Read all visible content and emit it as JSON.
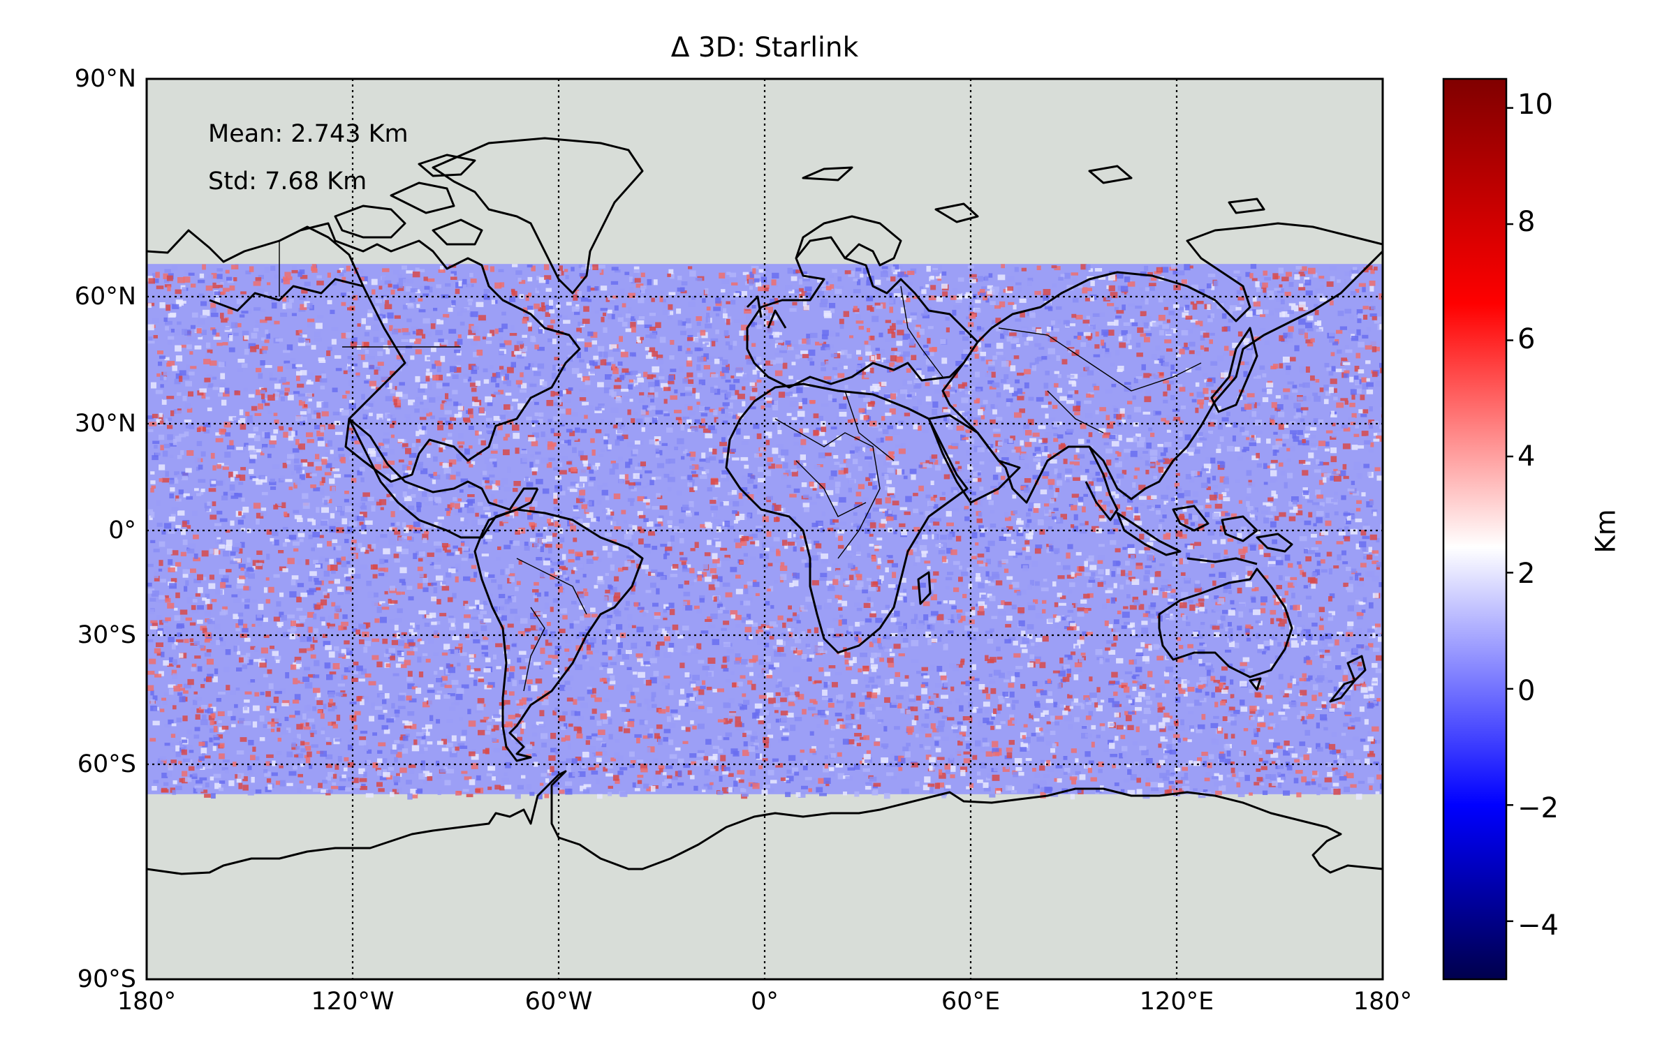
{
  "title": "Δ 3D: Starlink",
  "stats": {
    "mean": "Mean: 2.743 Km",
    "std": "Std: 7.68 Km"
  },
  "axes": {
    "y_ticks": [
      "90°N",
      "60°N",
      "30°N",
      "0°",
      "30°S",
      "60°S",
      "90°S"
    ],
    "x_ticks": [
      "180°",
      "120°W",
      "60°W",
      "0°",
      "60°E",
      "120°E",
      "180°"
    ]
  },
  "colorbar": {
    "label": "Km",
    "ticks": [
      "10",
      "8",
      "6",
      "4",
      "2",
      "0",
      "−2",
      "−4"
    ],
    "range": [
      -5,
      10.5
    ],
    "colormap": "seismic",
    "colors": [
      "#00004c",
      "#0000ff",
      "#ffffff",
      "#ff0000",
      "#800000"
    ]
  },
  "map": {
    "projection": "plate-carree",
    "ocean_color": "#d8ddd8",
    "coastline_color": "#000000",
    "gridlines": "dotted",
    "data_coverage_lat": [
      -53,
      53
    ],
    "scatter_colors": [
      "#6a6ff0",
      "#8a8df5",
      "#b0b3fa",
      "#e8e8ff",
      "#ef6f6f",
      "#d84a4a",
      "#9a9cf7"
    ]
  }
}
